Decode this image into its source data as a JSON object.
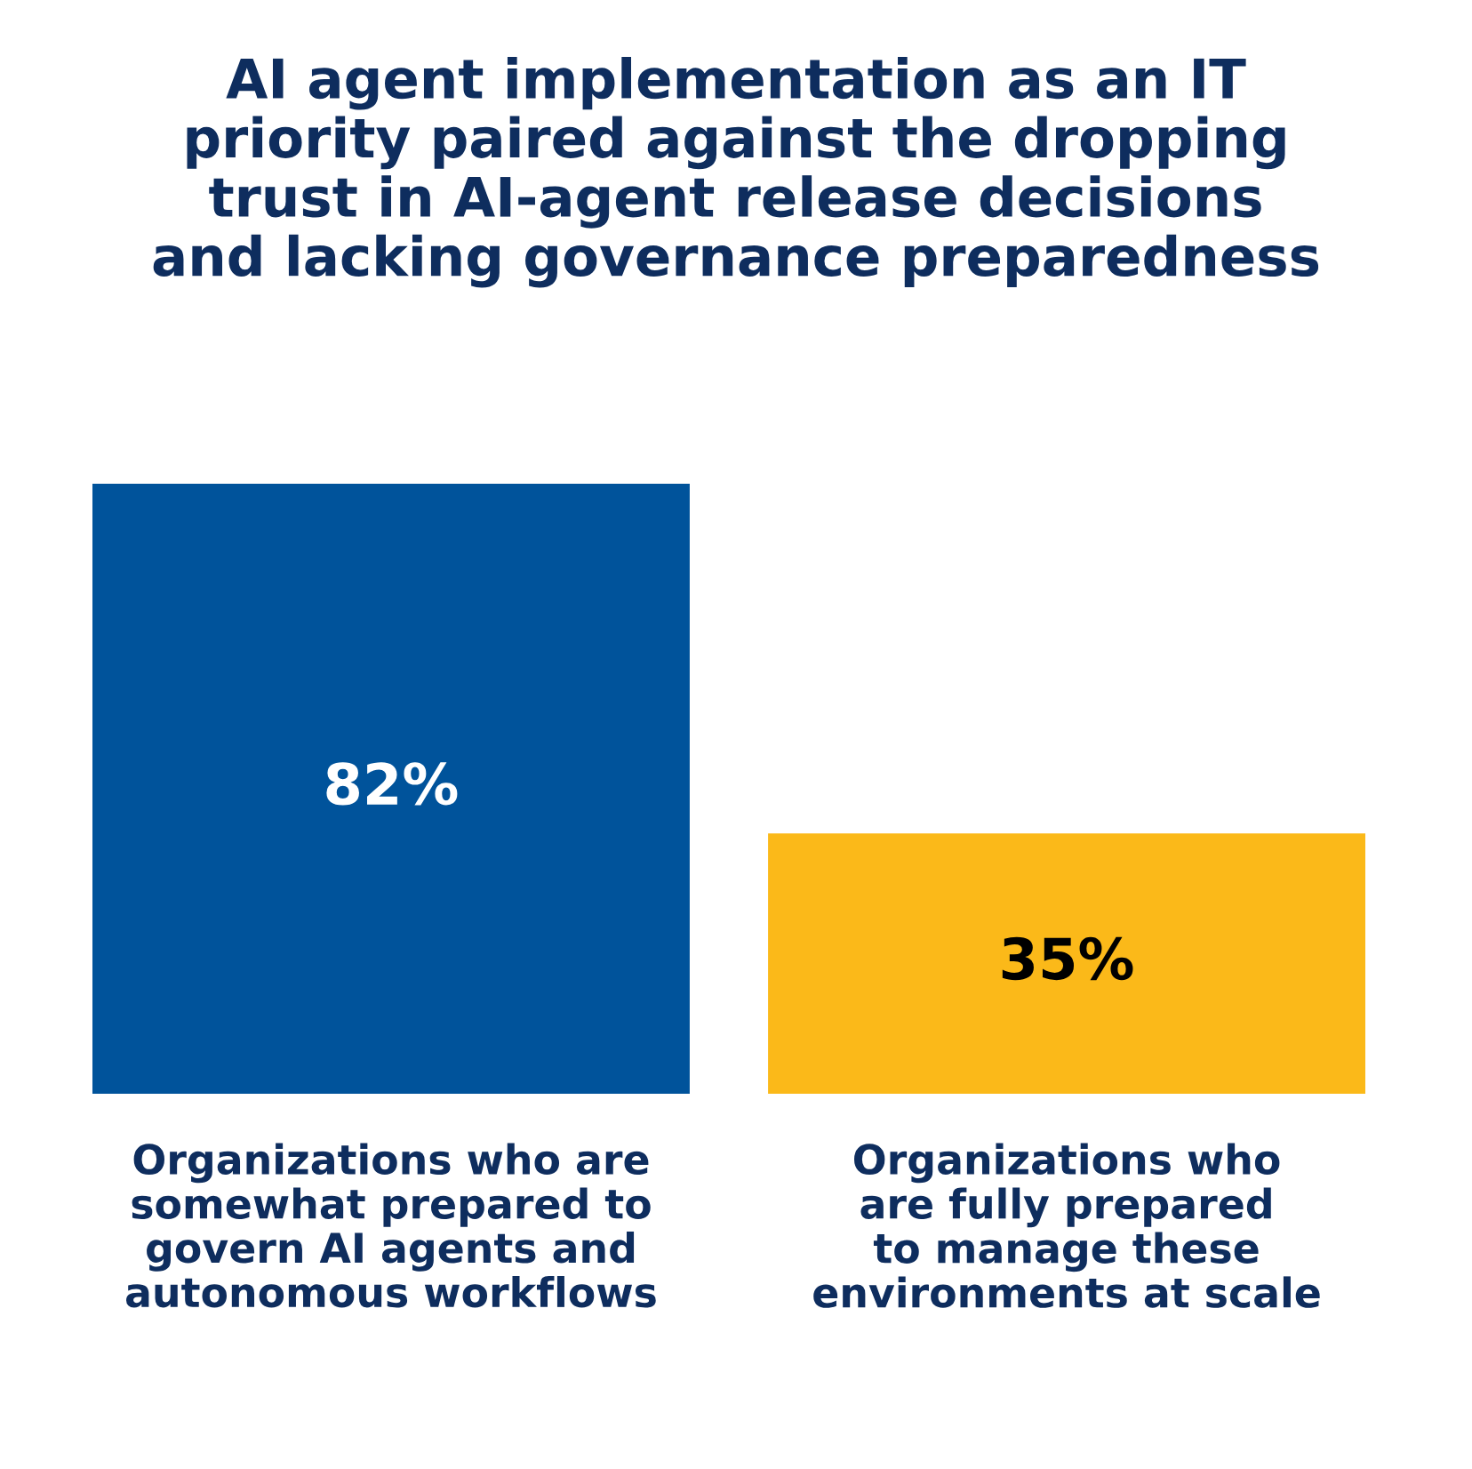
{
  "chart_data": {
    "type": "bar",
    "title": "AI agent implementation as an IT\npriority paired against the dropping\ntrust in AI-agent release decisions\nand lacking governance preparedness",
    "categories": [
      "Organizations who are\nsomewhat prepared to\ngovern AI agents and\nautonomous workflows",
      "Organizations who\nare fully prepared\nto manage these\nenvironments at scale"
    ],
    "values": [
      82,
      35
    ],
    "colors": [
      "#00539b",
      "#fbb919"
    ],
    "value_labels": [
      "82%",
      "35%"
    ],
    "grid": false,
    "legend": false
  }
}
